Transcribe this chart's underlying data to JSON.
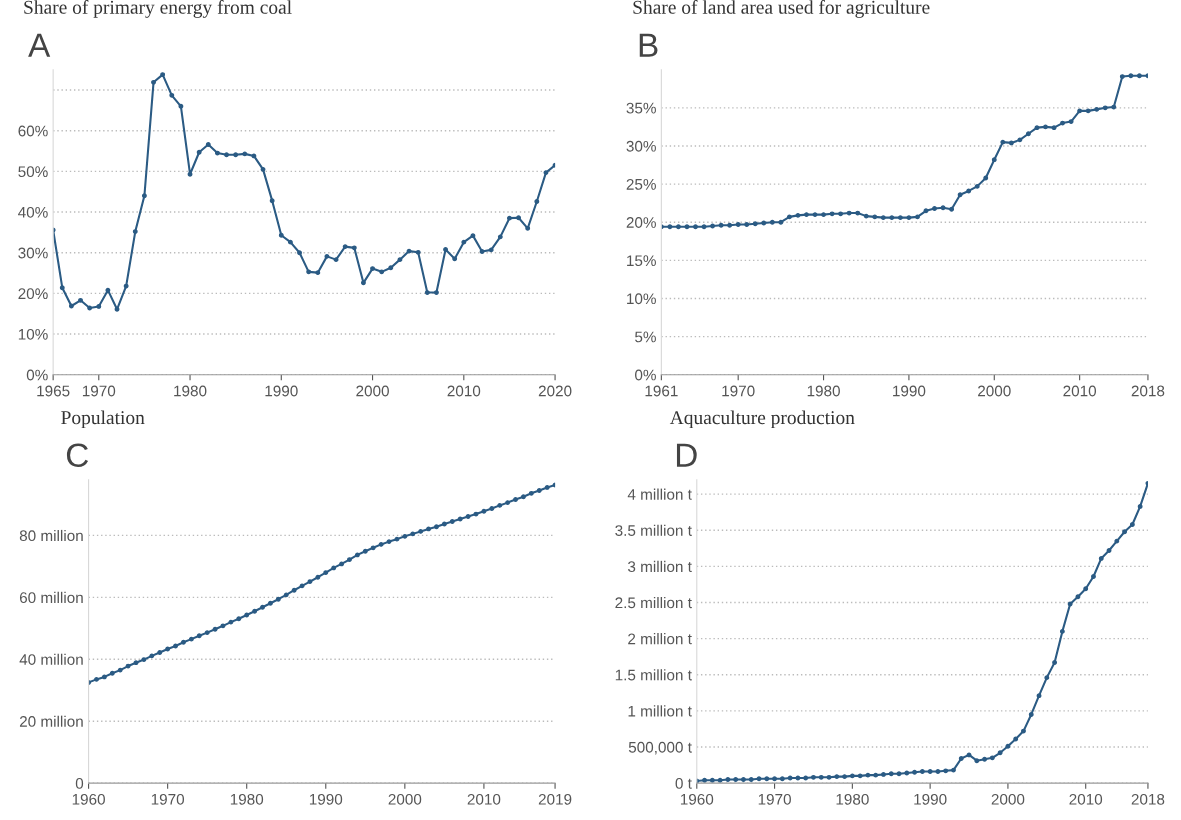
{
  "chart_data": [
    {
      "type": "line",
      "title": "Share of primary energy from coal",
      "annotations": [
        "A"
      ],
      "color": "#2b5b84",
      "marker": "circle",
      "grid": "y",
      "line_style": "solid",
      "x": [
        1965,
        1966,
        1967,
        1968,
        1969,
        1970,
        1971,
        1972,
        1973,
        1974,
        1975,
        1976,
        1977,
        1978,
        1979,
        1980,
        1981,
        1982,
        1983,
        1984,
        1985,
        1986,
        1987,
        1988,
        1989,
        1990,
        1991,
        1992,
        1993,
        1994,
        1995,
        1996,
        1997,
        1998,
        1999,
        2000,
        2001,
        2002,
        2003,
        2004,
        2005,
        2006,
        2007,
        2008,
        2009,
        2010,
        2011,
        2012,
        2013,
        2014,
        2015,
        2016,
        2017,
        2018,
        2019,
        2020
      ],
      "values": [
        35.6,
        21.4,
        16.9,
        18.3,
        16.4,
        16.8,
        20.8,
        16.1,
        21.8,
        35.2,
        44,
        71.9,
        73.8,
        68.7,
        66,
        49.3,
        54.7,
        56.6,
        54.5,
        54.1,
        54.1,
        54.3,
        53.8,
        50.5,
        42.8,
        34.3,
        32.6,
        30,
        25.3,
        25.1,
        29.1,
        28.3,
        31.5,
        31.2,
        22.6,
        26.1,
        25.3,
        26.3,
        28.3,
        30.4,
        30.1,
        20.2,
        20.2,
        30.8,
        28.5,
        32.6,
        34.2,
        30.3,
        30.7,
        33.9,
        38.5,
        38.6,
        36,
        42.6,
        49.7,
        51.5
      ],
      "xlim": [
        1965,
        2020
      ],
      "xticks": [
        1965,
        1970,
        1980,
        1990,
        2000,
        2010,
        2020
      ],
      "ylim": [
        0,
        75
      ],
      "yticks": [
        {
          "value": 0,
          "label": "0%"
        },
        {
          "value": 10,
          "label": "10%"
        },
        {
          "value": 20,
          "label": "20%"
        },
        {
          "value": 30,
          "label": "30%"
        },
        {
          "value": 40,
          "label": "40%"
        },
        {
          "value": 50,
          "label": "50%"
        },
        {
          "value": 60,
          "label": "60%"
        },
        {
          "value": 70,
          "label": null
        }
      ]
    },
    {
      "type": "line",
      "title": "Share of land area used for agriculture",
      "annotations": [
        "B"
      ],
      "color": "#2b5b84",
      "marker": "circle",
      "grid": "y",
      "line_style": "solid",
      "x": [
        1961,
        1962,
        1963,
        1964,
        1965,
        1966,
        1967,
        1968,
        1969,
        1970,
        1971,
        1972,
        1973,
        1974,
        1975,
        1976,
        1977,
        1978,
        1979,
        1980,
        1981,
        1982,
        1983,
        1984,
        1985,
        1986,
        1987,
        1988,
        1989,
        1990,
        1991,
        1992,
        1993,
        1994,
        1995,
        1996,
        1997,
        1998,
        1999,
        2000,
        2001,
        2002,
        2003,
        2004,
        2005,
        2006,
        2007,
        2008,
        2009,
        2010,
        2011,
        2012,
        2013,
        2014,
        2015,
        2016,
        2017,
        2018
      ],
      "values": [
        19.4,
        19.4,
        19.4,
        19.4,
        19.4,
        19.4,
        19.5,
        19.6,
        19.6,
        19.7,
        19.7,
        19.8,
        19.9,
        20,
        20,
        20.7,
        20.9,
        21,
        21,
        21,
        21.1,
        21.1,
        21.2,
        21.2,
        20.8,
        20.7,
        20.6,
        20.6,
        20.6,
        20.6,
        20.7,
        21.5,
        21.8,
        21.9,
        21.7,
        23.6,
        24.1,
        24.7,
        25.8,
        28.2,
        30.5,
        30.4,
        30.8,
        31.6,
        32.4,
        32.5,
        32.4,
        33,
        33.2,
        34.6,
        34.6,
        34.8,
        35,
        35.1,
        39.1,
        39.2,
        39.2,
        39.2
      ],
      "xlim": [
        1961,
        2018
      ],
      "xticks": [
        1961,
        1970,
        1980,
        1990,
        2000,
        2010,
        2018
      ],
      "ylim": [
        0,
        40
      ],
      "yticks": [
        {
          "value": 0,
          "label": "0%"
        },
        {
          "value": 5,
          "label": "5%"
        },
        {
          "value": 10,
          "label": "10%"
        },
        {
          "value": 15,
          "label": "15%"
        },
        {
          "value": 20,
          "label": "20%"
        },
        {
          "value": 25,
          "label": "25%"
        },
        {
          "value": 30,
          "label": "30%"
        },
        {
          "value": 35,
          "label": "35%"
        }
      ]
    },
    {
      "type": "line",
      "title": "Population",
      "annotations": [
        "C"
      ],
      "color": "#2b5b84",
      "marker": "circle",
      "grid": "y",
      "line_style": "solid",
      "x": [
        1960,
        1961,
        1962,
        1963,
        1964,
        1965,
        1966,
        1967,
        1968,
        1969,
        1970,
        1971,
        1972,
        1973,
        1974,
        1975,
        1976,
        1977,
        1978,
        1979,
        1980,
        1981,
        1982,
        1983,
        1984,
        1985,
        1986,
        1987,
        1988,
        1989,
        1990,
        1991,
        1992,
        1993,
        1994,
        1995,
        1996,
        1997,
        1998,
        1999,
        2000,
        2001,
        2002,
        2003,
        2004,
        2005,
        2006,
        2007,
        2008,
        2009,
        2010,
        2011,
        2012,
        2013,
        2014,
        2015,
        2016,
        2017,
        2018,
        2019
      ],
      "values": [
        32.5,
        33.5,
        34.3,
        35.5,
        36.5,
        37.8,
        38.9,
        39.9,
        41.1,
        42.2,
        43.3,
        44.3,
        45.5,
        46.5,
        47.6,
        48.6,
        49.7,
        50.8,
        52,
        53.1,
        54.3,
        55.5,
        56.8,
        58.1,
        59.4,
        60.8,
        62.3,
        63.7,
        65.1,
        66.5,
        68,
        69.5,
        70.8,
        72.2,
        73.7,
        74.9,
        76,
        77.1,
        78,
        78.8,
        79.7,
        80.5,
        81.3,
        82.1,
        82.8,
        83.7,
        84.5,
        85.3,
        86.1,
        86.9,
        87.8,
        88.7,
        89.7,
        90.6,
        91.6,
        92.5,
        93.6,
        94.5,
        95.5,
        96.3
      ],
      "xlim": [
        1960,
        2019
      ],
      "xticks": [
        1960,
        1970,
        1980,
        1990,
        2000,
        2010,
        2019
      ],
      "ylim": [
        0,
        98
      ],
      "yticks": [
        {
          "value": 0,
          "label": "0"
        },
        {
          "value": 20,
          "label": "20 million"
        },
        {
          "value": 40,
          "label": "40 million"
        },
        {
          "value": 60,
          "label": "60 million"
        },
        {
          "value": 80,
          "label": "80 million"
        }
      ]
    },
    {
      "type": "line",
      "title": "Aquaculture production",
      "annotations": [
        "D"
      ],
      "color": "#2b5b84",
      "marker": "circle",
      "grid": "y",
      "line_style": "solid",
      "x": [
        1960,
        1961,
        1962,
        1963,
        1964,
        1965,
        1966,
        1967,
        1968,
        1969,
        1970,
        1971,
        1972,
        1973,
        1974,
        1975,
        1976,
        1977,
        1978,
        1979,
        1980,
        1981,
        1982,
        1983,
        1984,
        1985,
        1986,
        1987,
        1988,
        1989,
        1990,
        1991,
        1992,
        1993,
        1994,
        1995,
        1996,
        1997,
        1998,
        1999,
        2000,
        2001,
        2002,
        2003,
        2004,
        2005,
        2006,
        2007,
        2008,
        2009,
        2010,
        2011,
        2012,
        2013,
        2014,
        2015,
        2016,
        2017,
        2018
      ],
      "values": [
        30000,
        40000,
        40000,
        40000,
        50000,
        50000,
        50000,
        50000,
        60000,
        60000,
        60000,
        60000,
        70000,
        70000,
        70000,
        80000,
        80000,
        80000,
        90000,
        90000,
        100000,
        100000,
        110000,
        110000,
        120000,
        130000,
        130000,
        140000,
        150000,
        160000,
        160000,
        160000,
        170000,
        180000,
        340000,
        390000,
        310000,
        330000,
        350000,
        420000,
        510000,
        610000,
        720000,
        950000,
        1210000,
        1460000,
        1670000,
        2100000,
        2480000,
        2580000,
        2690000,
        2860000,
        3110000,
        3220000,
        3350000,
        3480000,
        3580000,
        3830000,
        4150000
      ],
      "xlim": [
        1960,
        2018
      ],
      "xticks": [
        1960,
        1970,
        1980,
        1990,
        2000,
        2010,
        2018
      ],
      "ylim": [
        0,
        4200000
      ],
      "yticks": [
        {
          "value": 0,
          "label": "0 t"
        },
        {
          "value": 500000,
          "label": "500,000 t"
        },
        {
          "value": 1000000,
          "label": "1 million t"
        },
        {
          "value": 1500000,
          "label": "1.5 million t"
        },
        {
          "value": 2000000,
          "label": "2 million t"
        },
        {
          "value": 2500000,
          "label": "2.5 million t"
        },
        {
          "value": 3000000,
          "label": "3 million t"
        },
        {
          "value": 3500000,
          "label": "3.5 million t"
        },
        {
          "value": 4000000,
          "label": "4 million t"
        }
      ]
    }
  ]
}
